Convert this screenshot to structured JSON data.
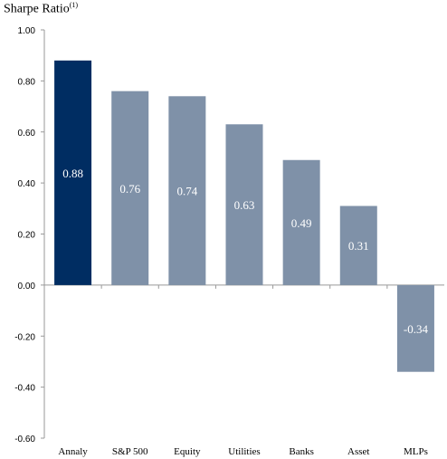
{
  "chart_data": {
    "type": "bar",
    "title": "Sharpe Ratio",
    "title_superscript": "(1)",
    "categories": [
      "Annaly",
      "S&P 500",
      "Equity",
      "Utilities",
      "Banks",
      "Asset",
      "MLPs"
    ],
    "values": [
      0.88,
      0.76,
      0.74,
      0.63,
      0.49,
      0.31,
      -0.34
    ],
    "value_labels": [
      "0.88",
      "0.76",
      "0.74",
      "0.63",
      "0.49",
      "0.31",
      "-0.34"
    ],
    "y_ticks": [
      "1.00",
      "0.80",
      "0.60",
      "0.40",
      "0.20",
      "0.00",
      "-0.20",
      "-0.40",
      "-0.60"
    ],
    "y_tick_values": [
      1.0,
      0.8,
      0.6,
      0.4,
      0.2,
      0.0,
      -0.2,
      -0.4,
      -0.6
    ],
    "ylim": [
      -0.6,
      1.0
    ],
    "grid": false,
    "legend": "none",
    "colors": {
      "highlight": "#002d62",
      "default": "#7f91a8",
      "axis": "#999999",
      "label_text": "#ffffff"
    },
    "highlight_index": 0
  }
}
